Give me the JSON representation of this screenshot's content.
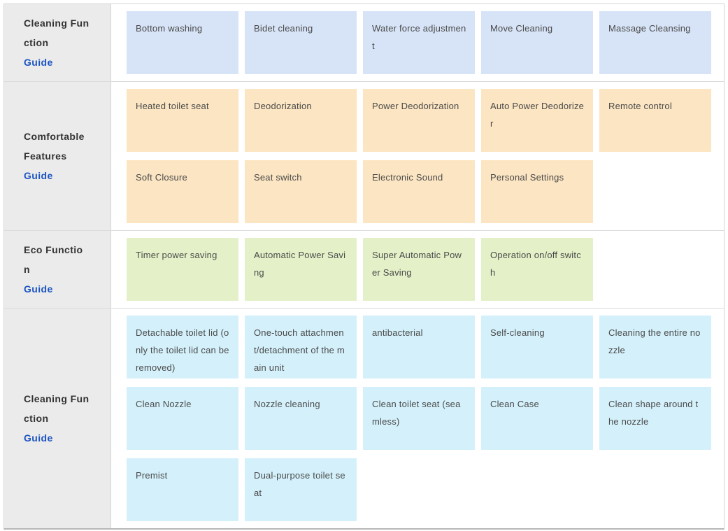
{
  "colors": {
    "row_cleaning_blue": "#d7e4f7",
    "row_comfort_orange": "#fce5c2",
    "row_eco_green": "#e4f1c8",
    "row_cleaning_cyan": "#d4f1fb",
    "label_cell_bg": "#ebebeb",
    "guide_link_blue": "#1d55c2",
    "card_text": "#4a4a4a",
    "label_text": "#333333"
  },
  "table": {
    "rows": [
      {
        "category": {
          "text": "Cleaning Function",
          "lines": [
            "Cleaning Fun",
            "ction"
          ],
          "link": "Guide"
        },
        "card_color": "#d7e4f7",
        "cards": [
          "Bottom washing",
          "Bidet cleaning",
          "Water force adjustment",
          "Move Cleaning",
          "Massage Cleansing"
        ]
      },
      {
        "category": {
          "text": "Comfortable Features",
          "lines": [
            "Comfortable",
            "Features"
          ],
          "link": "Guide"
        },
        "card_color": "#fce5c2",
        "cards": [
          "Heated toilet seat",
          "Deodorization",
          "Power Deodorization",
          "Auto Power Deodorizer",
          "Remote control",
          "Soft Closure",
          "Seat switch",
          "Electronic Sound",
          "Personal Settings"
        ]
      },
      {
        "category": {
          "text": "Eco Function",
          "lines": [
            "Eco Functio",
            "n"
          ],
          "link": "Guide"
        },
        "card_color": "#e4f1c8",
        "cards": [
          "Timer power saving",
          "Automatic Power Saving",
          "Super Automatic Power Saving",
          "Operation on/off switch"
        ]
      },
      {
        "category": {
          "text": "Cleaning Function",
          "lines": [
            "Cleaning Fun",
            "ction"
          ],
          "link": "Guide"
        },
        "card_color": "#d4f1fb",
        "cards": [
          "Detachable toilet lid (only the toilet lid can be removed)",
          "One-touch attachment/detachment of the main unit",
          "antibacterial",
          "Self-cleaning",
          "Cleaning the entire nozzle",
          "Clean Nozzle",
          "Nozzle cleaning",
          "Clean toilet seat (seamless)",
          "Clean Case",
          "Clean shape around the nozzle",
          "Premist",
          "Dual-purpose toilet seat"
        ]
      }
    ]
  }
}
